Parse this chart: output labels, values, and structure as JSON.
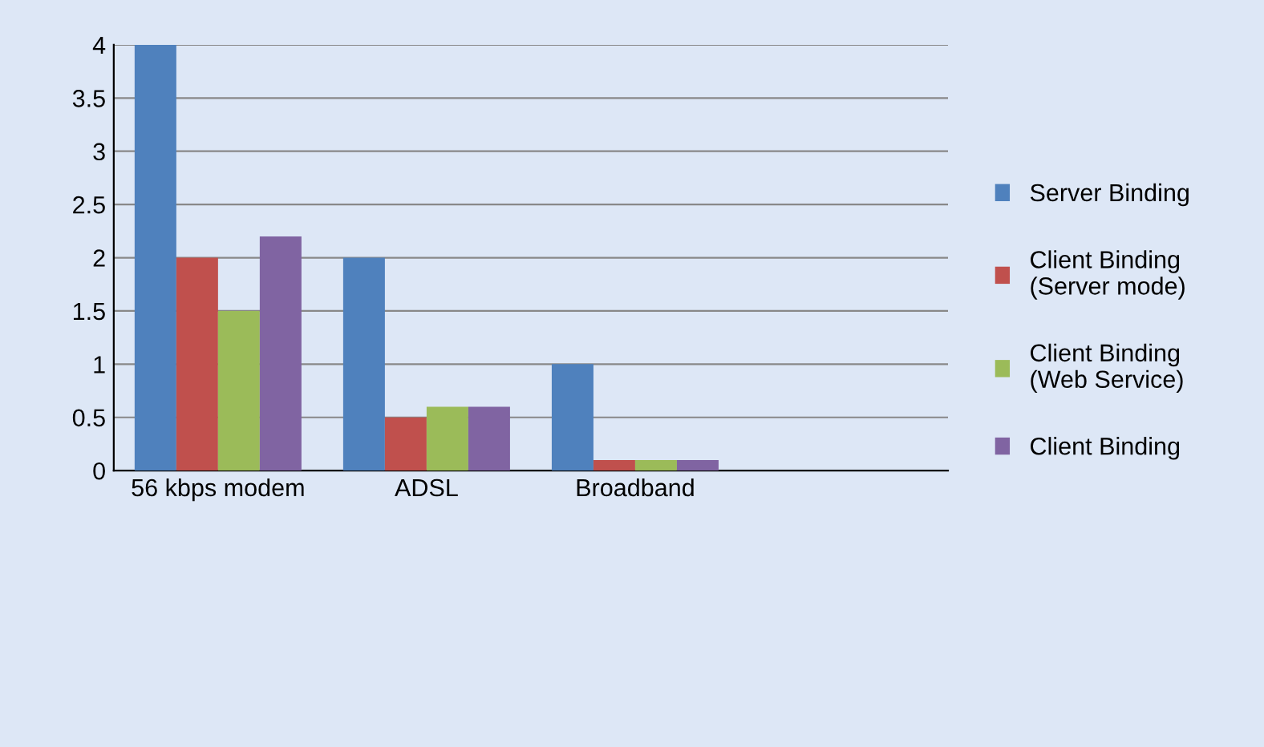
{
  "chart_data": {
    "type": "bar",
    "categories": [
      "56 kbps modem",
      "ADSL",
      "Broadband",
      null
    ],
    "series": [
      {
        "name": "Server Binding",
        "color": "#4f81bd",
        "values": [
          4,
          2,
          1,
          null
        ]
      },
      {
        "name": "Client Binding (Server mode)",
        "color": "#c0504d",
        "values": [
          2,
          0.5,
          0.1,
          null
        ]
      },
      {
        "name": "Client Binding (Web Service)",
        "color": "#9bbb59",
        "values": [
          1.5,
          0.6,
          0.1,
          null
        ]
      },
      {
        "name": "Client Binding",
        "color": "#8064a2",
        "values": [
          2.2,
          0.6,
          0.1,
          null
        ]
      }
    ],
    "ylim": [
      0,
      4
    ],
    "yticks": [
      0,
      0.5,
      1,
      1.5,
      2,
      2.5,
      3,
      3.5,
      4
    ],
    "grid": "y",
    "legend": "right"
  }
}
